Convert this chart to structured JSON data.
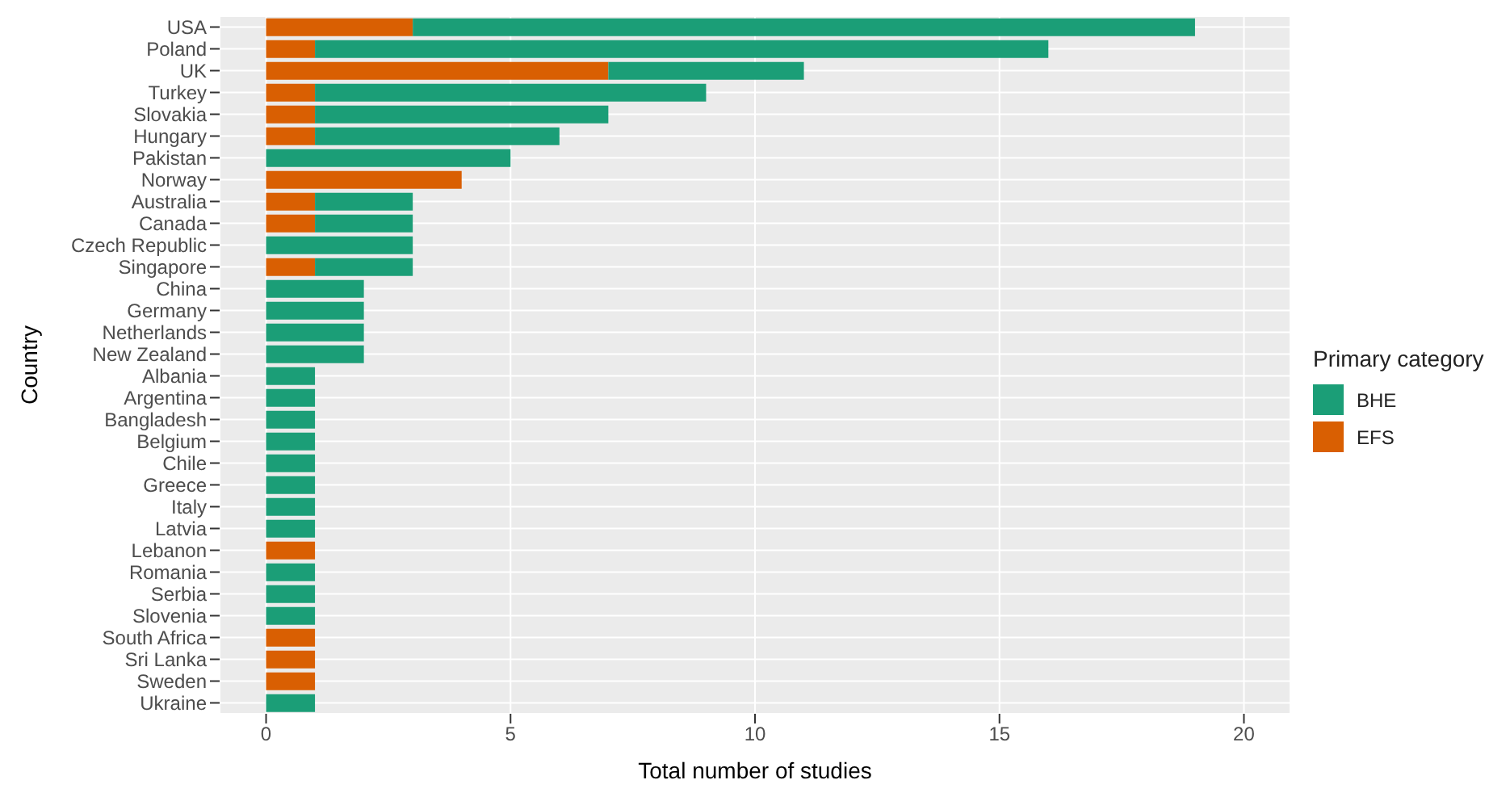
{
  "chart_data": {
    "type": "bar",
    "orientation": "horizontal",
    "stacked": true,
    "xlabel": "Total number of studies",
    "ylabel": "Country",
    "legend_title": "Primary category",
    "legend": "right",
    "grid": true,
    "categories": [
      "USA",
      "Poland",
      "UK",
      "Turkey",
      "Slovakia",
      "Hungary",
      "Pakistan",
      "Norway",
      "Australia",
      "Canada",
      "Czech Republic",
      "Singapore",
      "China",
      "Germany",
      "Netherlands",
      "New Zealand",
      "Albania",
      "Argentina",
      "Bangladesh",
      "Belgium",
      "Chile",
      "Greece",
      "Italy",
      "Latvia",
      "Lebanon",
      "Romania",
      "Serbia",
      "Slovenia",
      "South Africa",
      "Sri Lanka",
      "Sweden",
      "Ukraine"
    ],
    "series": [
      {
        "name": "EFS",
        "color": "#d95f02",
        "values": [
          3,
          1,
          7,
          1,
          1,
          1,
          null,
          4,
          1,
          1,
          null,
          1,
          null,
          null,
          null,
          null,
          null,
          null,
          null,
          null,
          null,
          null,
          null,
          null,
          1,
          null,
          null,
          null,
          1,
          1,
          1,
          null
        ]
      },
      {
        "name": "BHE",
        "color": "#1b9e77",
        "values": [
          16,
          15,
          4,
          8,
          6,
          5,
          5,
          null,
          2,
          2,
          3,
          2,
          2,
          2,
          2,
          2,
          1,
          1,
          1,
          1,
          1,
          1,
          1,
          1,
          null,
          1,
          1,
          1,
          null,
          null,
          null,
          1
        ]
      }
    ],
    "xlim": [
      -0.95,
      20.95
    ],
    "xticks": [
      0,
      5,
      10,
      15,
      20
    ]
  }
}
